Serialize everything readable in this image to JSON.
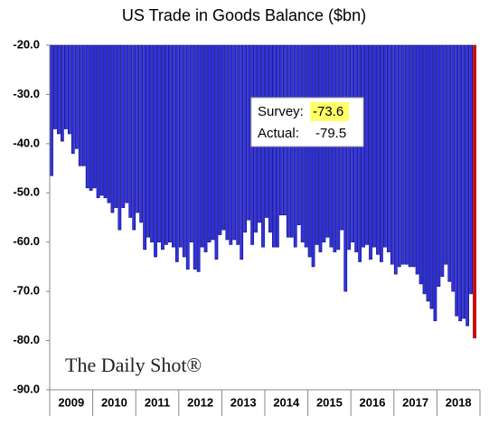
{
  "chart_data": {
    "type": "bar",
    "title": "US Trade in Goods Balance ($bn)",
    "categories": [
      "2009",
      null,
      null,
      null,
      null,
      null,
      null,
      null,
      null,
      null,
      null,
      null,
      "2010",
      null,
      null,
      null,
      null,
      null,
      null,
      null,
      null,
      null,
      null,
      null,
      "2011",
      null,
      null,
      null,
      null,
      null,
      null,
      null,
      null,
      null,
      null,
      null,
      "2012",
      null,
      null,
      null,
      null,
      null,
      null,
      null,
      null,
      null,
      null,
      null,
      "2013",
      null,
      null,
      null,
      null,
      null,
      null,
      null,
      null,
      null,
      null,
      null,
      "2014",
      null,
      null,
      null,
      null,
      null,
      null,
      null,
      null,
      null,
      null,
      null,
      "2015",
      null,
      null,
      null,
      null,
      null,
      null,
      null,
      null,
      null,
      null,
      null,
      "2016",
      null,
      null,
      null,
      null,
      null,
      null,
      null,
      null,
      null,
      null,
      null,
      "2017",
      null,
      null,
      null,
      null,
      null,
      null,
      null,
      null,
      null,
      null,
      null,
      "2018",
      null,
      null,
      null,
      null,
      null,
      null,
      null,
      null,
      null,
      null
    ],
    "values": [
      -46.5,
      -37,
      -38,
      -39.5,
      -37,
      -38,
      -42,
      -41,
      -44.5,
      -44.5,
      -49,
      -49.5,
      -49,
      -51,
      -50.5,
      -51,
      -52,
      -54,
      -53,
      -57.5,
      -53,
      -52,
      -55,
      -57.5,
      -54,
      -56,
      -61.5,
      -59,
      -60,
      -63,
      -60,
      -61.5,
      -60.5,
      -60,
      -61,
      -64,
      -61,
      -63,
      -65.5,
      -60,
      -65.5,
      -66,
      -61,
      -62,
      -60,
      -59.5,
      -63.5,
      -58.5,
      -57.5,
      -59.5,
      -60.5,
      -59.5,
      -60.5,
      -63.5,
      -58,
      -55.5,
      -60.5,
      -58,
      -56,
      -61,
      -55,
      -58,
      -61,
      -61,
      -54.5,
      -54.5,
      -59,
      -59,
      -61,
      -56.5,
      -60,
      -61,
      -63,
      -65,
      -60.5,
      -62,
      -60,
      -59,
      -61,
      -62,
      -61.5,
      -57.5,
      -70,
      -61.5,
      -60,
      -62,
      -64,
      -61,
      -60.5,
      -63.5,
      -61,
      -62.5,
      -64,
      -61,
      -62,
      -64.5,
      -66.5,
      -65,
      -64.5,
      -64.5,
      -65,
      -65,
      -66.5,
      -68.5,
      -70.5,
      -72,
      -73.5,
      -76,
      -69,
      -67,
      -64.5,
      -68,
      -70,
      -75,
      -76,
      -75.5,
      -77,
      -70.5,
      -79.5
    ],
    "color": "#3333dd",
    "last_bar_color": "#e00000",
    "ylim": [
      -90,
      -20
    ],
    "yticks": [
      {
        "value": -90,
        "label": "-90.0"
      },
      {
        "value": -80,
        "label": "-80.0"
      },
      {
        "value": -70,
        "label": "-70.0"
      },
      {
        "value": -60,
        "label": "-60.0"
      },
      {
        "value": -50,
        "label": "-50.0"
      },
      {
        "value": -40,
        "label": "-40.0"
      },
      {
        "value": -30,
        "label": "-30.0"
      },
      {
        "value": -20,
        "label": "-20.0"
      }
    ],
    "grid": false,
    "annotation": {
      "survey_label": "Survey:",
      "survey_value": -73.6,
      "actual_label": "Actual:",
      "actual_value": -79.5
    },
    "watermark": "The Daily Shot®"
  }
}
